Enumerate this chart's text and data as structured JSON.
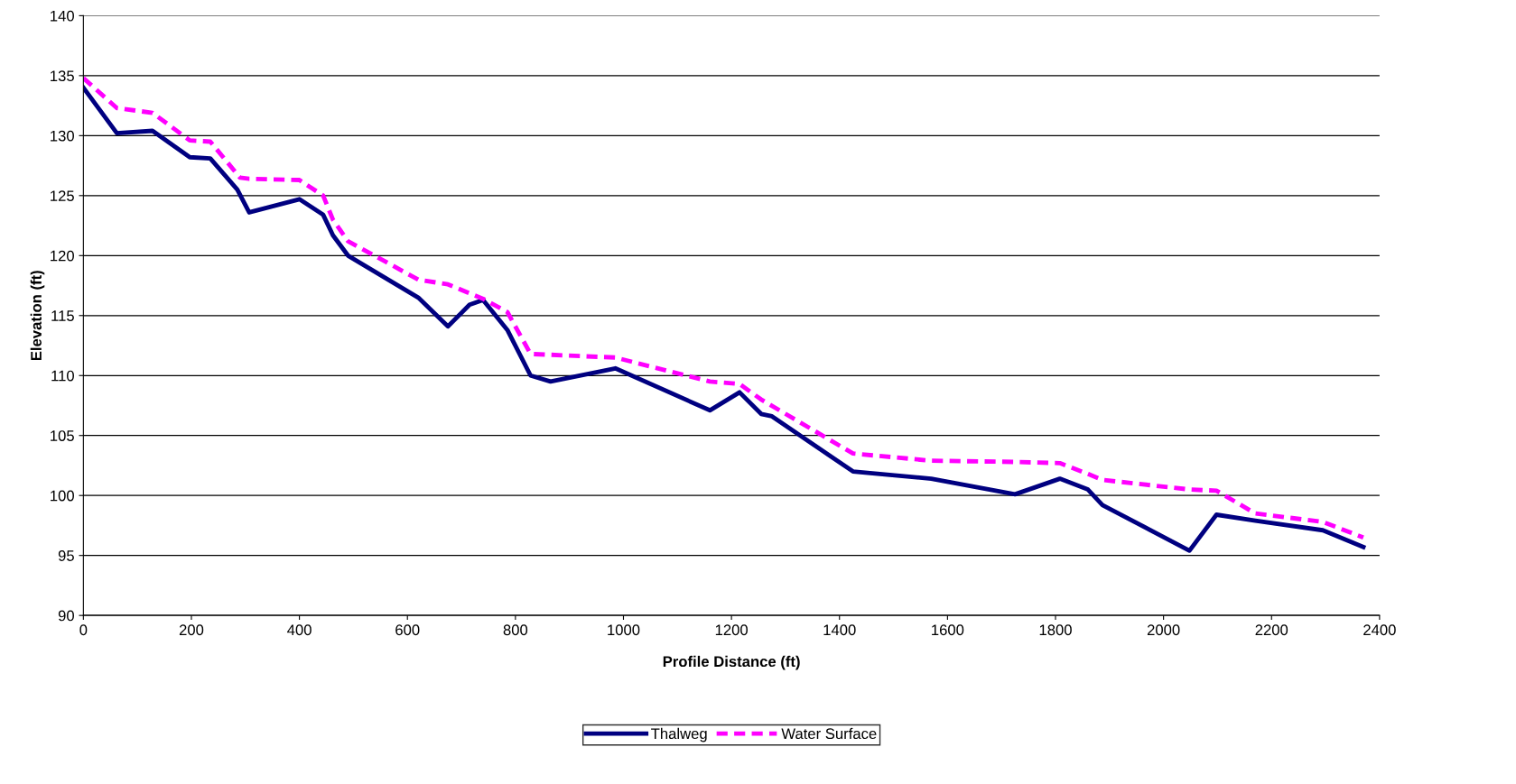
{
  "chart_data": {
    "type": "line",
    "xlabel": "Profile Distance (ft)",
    "ylabel": "Elevation (ft)",
    "xlim": [
      0,
      2400
    ],
    "xticks": [
      0,
      200,
      400,
      600,
      800,
      1000,
      1200,
      1400,
      1600,
      1800,
      2000,
      2200,
      2400
    ],
    "ylim": [
      90,
      140
    ],
    "yticks": [
      90,
      95,
      100,
      105,
      110,
      115,
      120,
      125,
      130,
      135,
      140
    ],
    "grid": "y",
    "legend": "bottom",
    "marker": "none",
    "series": [
      {
        "name": "Thalweg",
        "color": "#000080",
        "line_style": "solid",
        "x": [
          0,
          62,
          128,
          197,
          235,
          285,
          307,
          400,
          444,
          462,
          490,
          620,
          675,
          715,
          740,
          785,
          828,
          865,
          985,
          1160,
          1215,
          1255,
          1275,
          1425,
          1570,
          1725,
          1808,
          1860,
          1887,
          2048,
          2098,
          2170,
          2295,
          2370
        ],
        "values": [
          134.0,
          130.2,
          130.4,
          128.2,
          128.1,
          125.5,
          123.6,
          124.7,
          123.4,
          121.7,
          120.0,
          116.5,
          114.1,
          115.9,
          116.3,
          113.8,
          110.0,
          109.5,
          110.6,
          107.1,
          108.6,
          106.8,
          106.6,
          102.0,
          101.4,
          100.1,
          101.4,
          100.5,
          99.2,
          95.4,
          98.4,
          97.9,
          97.1,
          95.7
        ]
      },
      {
        "name": "Water Surface",
        "color": "#ff00ff",
        "line_style": "dashed",
        "x": [
          0,
          62,
          128,
          197,
          235,
          290,
          307,
          400,
          444,
          462,
          490,
          620,
          675,
          740,
          785,
          828,
          985,
          1160,
          1215,
          1255,
          1425,
          1570,
          1725,
          1808,
          1860,
          1887,
          2048,
          2098,
          2170,
          2295,
          2370
        ],
        "values": [
          134.8,
          132.3,
          131.9,
          129.6,
          129.5,
          126.5,
          126.4,
          126.3,
          125.0,
          123.0,
          121.2,
          118.0,
          117.6,
          116.4,
          115.3,
          111.8,
          111.5,
          109.5,
          109.3,
          108.0,
          103.5,
          102.9,
          102.8,
          102.7,
          101.8,
          101.3,
          100.5,
          100.4,
          98.5,
          97.8,
          96.5
        ]
      }
    ]
  }
}
